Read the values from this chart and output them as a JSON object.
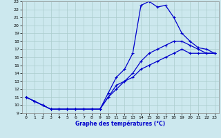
{
  "xlabel": "Graphe des températures (°C)",
  "bg_color": "#cce8ee",
  "grid_color": "#aacccc",
  "line_color": "#0000cc",
  "xlim": [
    -0.5,
    23.5
  ],
  "ylim": [
    9,
    23
  ],
  "xticks": [
    0,
    1,
    2,
    3,
    4,
    5,
    6,
    7,
    8,
    9,
    10,
    11,
    12,
    13,
    14,
    15,
    16,
    17,
    18,
    19,
    20,
    21,
    22,
    23
  ],
  "yticks": [
    9,
    10,
    11,
    12,
    13,
    14,
    15,
    16,
    17,
    18,
    19,
    20,
    21,
    22,
    23
  ],
  "line1_x": [
    0,
    1,
    2,
    3,
    4,
    5,
    6,
    7,
    8,
    9,
    10,
    11,
    12,
    13,
    14,
    15,
    16,
    17,
    18,
    19,
    20,
    21,
    22,
    23
  ],
  "line1_y": [
    11,
    10.5,
    10,
    9.5,
    9.5,
    9.5,
    9.5,
    9.5,
    9.5,
    9.5,
    11.5,
    13.5,
    14.5,
    16.5,
    22.5,
    23,
    22.3,
    22.5,
    21,
    19,
    18,
    17.2,
    17,
    16.5
  ],
  "line2_x": [
    0,
    1,
    2,
    3,
    4,
    5,
    6,
    7,
    8,
    9,
    10,
    11,
    12,
    13,
    14,
    15,
    16,
    17,
    18,
    19,
    20,
    21,
    22,
    23
  ],
  "line2_y": [
    11,
    10.5,
    10,
    9.5,
    9.5,
    9.5,
    9.5,
    9.5,
    9.5,
    9.5,
    11,
    12.5,
    13,
    14,
    15.5,
    16.5,
    17,
    17.5,
    18,
    18,
    17.5,
    17,
    16.5,
    16.5
  ],
  "line3_x": [
    0,
    1,
    2,
    3,
    4,
    5,
    6,
    7,
    8,
    9,
    10,
    11,
    12,
    13,
    14,
    15,
    16,
    17,
    18,
    19,
    20,
    21,
    22,
    23
  ],
  "line3_y": [
    11,
    10.5,
    10,
    9.5,
    9.5,
    9.5,
    9.5,
    9.5,
    9.5,
    9.5,
    11,
    12,
    13,
    13.5,
    14.5,
    15,
    15.5,
    16,
    16.5,
    17,
    16.5,
    16.5,
    16.5,
    16.5
  ]
}
